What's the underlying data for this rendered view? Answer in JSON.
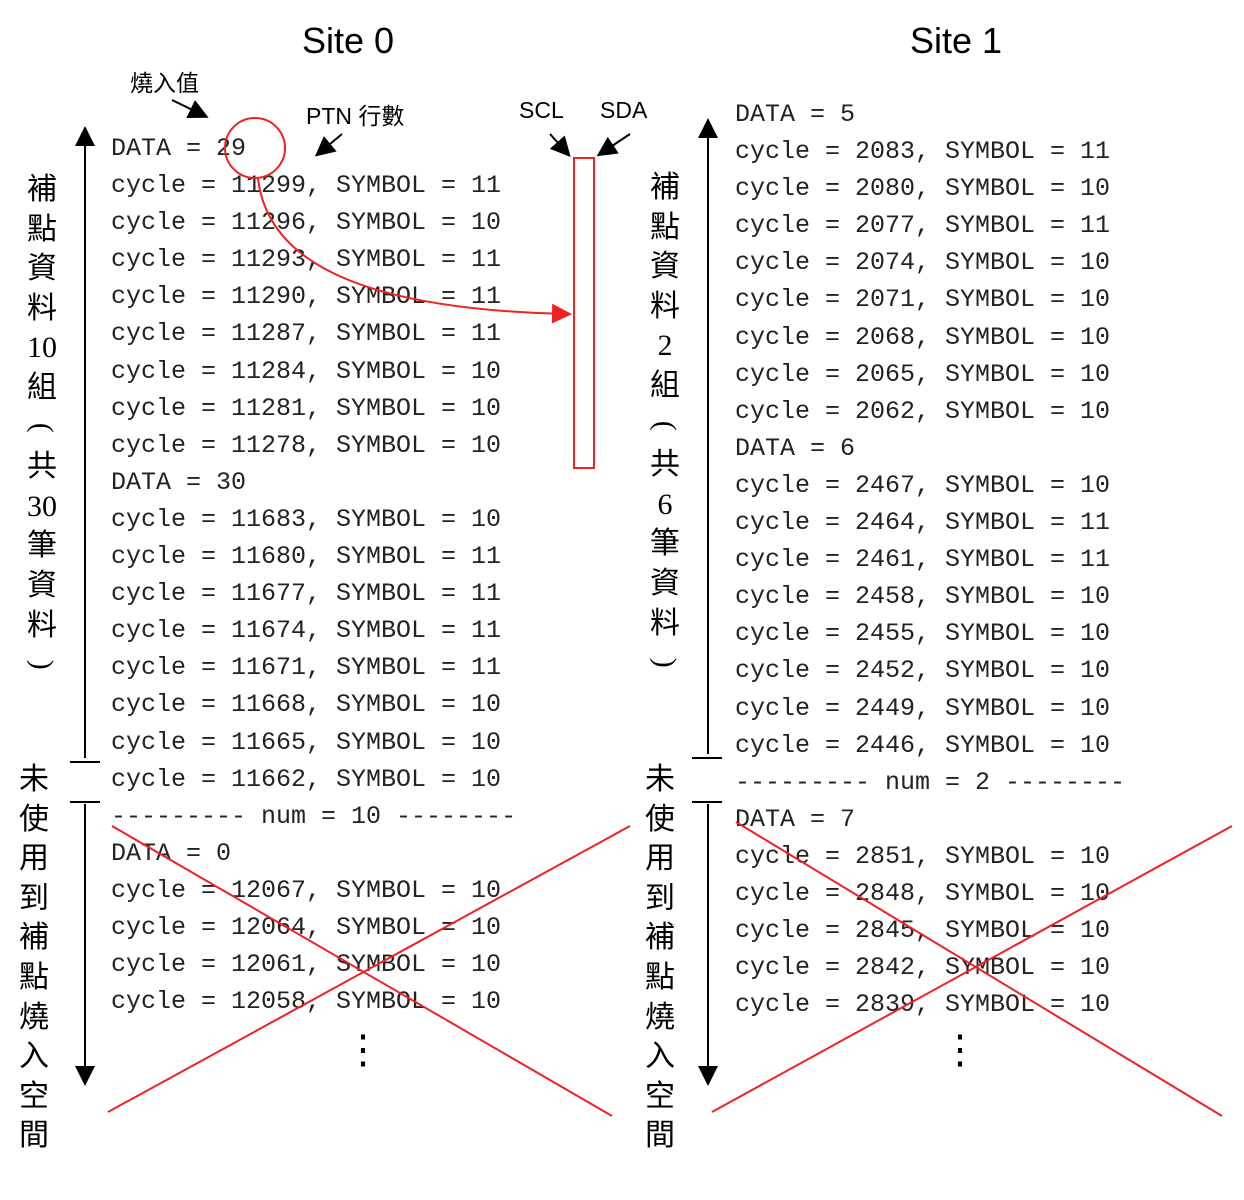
{
  "titles": {
    "site0": "Site 0",
    "site1": "Site 1"
  },
  "annotations": {
    "burn_value": "燒入值",
    "ptn_rows": "PTN 行數",
    "scl": "SCL",
    "sda": "SDA"
  },
  "site0": {
    "lines": [
      "DATA = 29",
      "cycle = 11299, SYMBOL = 11",
      "cycle = 11296, SYMBOL = 10",
      "cycle = 11293, SYMBOL = 11",
      "cycle = 11290, SYMBOL = 11",
      "cycle = 11287, SYMBOL = 11",
      "cycle = 11284, SYMBOL = 10",
      "cycle = 11281, SYMBOL = 10",
      "cycle = 11278, SYMBOL = 10",
      "DATA = 30",
      "cycle = 11683, SYMBOL = 10",
      "cycle = 11680, SYMBOL = 11",
      "cycle = 11677, SYMBOL = 11",
      "cycle = 11674, SYMBOL = 11",
      "cycle = 11671, SYMBOL = 11",
      "cycle = 11668, SYMBOL = 10",
      "cycle = 11665, SYMBOL = 10",
      "cycle = 11662, SYMBOL = 10",
      "--------- num = 10 --------",
      "DATA = 0",
      "cycle = 12067, SYMBOL = 10",
      "cycle = 12064, SYMBOL = 10",
      "cycle = 12061, SYMBOL = 10",
      "cycle = 12058, SYMBOL = 10"
    ],
    "used_label": [
      "補",
      "點",
      "資",
      "料",
      "10",
      "組",
      "(",
      "共",
      "30",
      "筆",
      "資",
      "料",
      ")"
    ],
    "unused_label": [
      "未",
      "使",
      "用",
      "到",
      "補",
      "點",
      "燒",
      "入",
      "空",
      "間"
    ],
    "ellipsis": "⋮"
  },
  "site1": {
    "lines": [
      "DATA = 5",
      "cycle = 2083, SYMBOL = 11",
      "cycle = 2080, SYMBOL = 10",
      "cycle = 2077, SYMBOL = 11",
      "cycle = 2074, SYMBOL = 10",
      "cycle = 2071, SYMBOL = 10",
      "cycle = 2068, SYMBOL = 10",
      "cycle = 2065, SYMBOL = 10",
      "cycle = 2062, SYMBOL = 10",
      "DATA = 6",
      "cycle = 2467, SYMBOL = 10",
      "cycle = 2464, SYMBOL = 11",
      "cycle = 2461, SYMBOL = 11",
      "cycle = 2458, SYMBOL = 10",
      "cycle = 2455, SYMBOL = 10",
      "cycle = 2452, SYMBOL = 10",
      "cycle = 2449, SYMBOL = 10",
      "cycle = 2446, SYMBOL = 10",
      "--------- num = 2 --------",
      "DATA = 7",
      "cycle = 2851, SYMBOL = 10",
      "cycle = 2848, SYMBOL = 10",
      "cycle = 2845, SYMBOL = 10",
      "cycle = 2842, SYMBOL = 10",
      "cycle = 2839, SYMBOL = 10"
    ],
    "used_label": [
      "補",
      "點",
      "資",
      "料",
      "2",
      "組",
      "(",
      "共",
      "6",
      "筆",
      "資",
      "料",
      ")"
    ],
    "unused_label": [
      "未",
      "使",
      "用",
      "到",
      "補",
      "點",
      "燒",
      "入",
      "空",
      "間"
    ],
    "ellipsis": "⋮"
  },
  "colors": {
    "highlight": "#ee2222",
    "text": "#222222",
    "arrow": "#000000"
  }
}
